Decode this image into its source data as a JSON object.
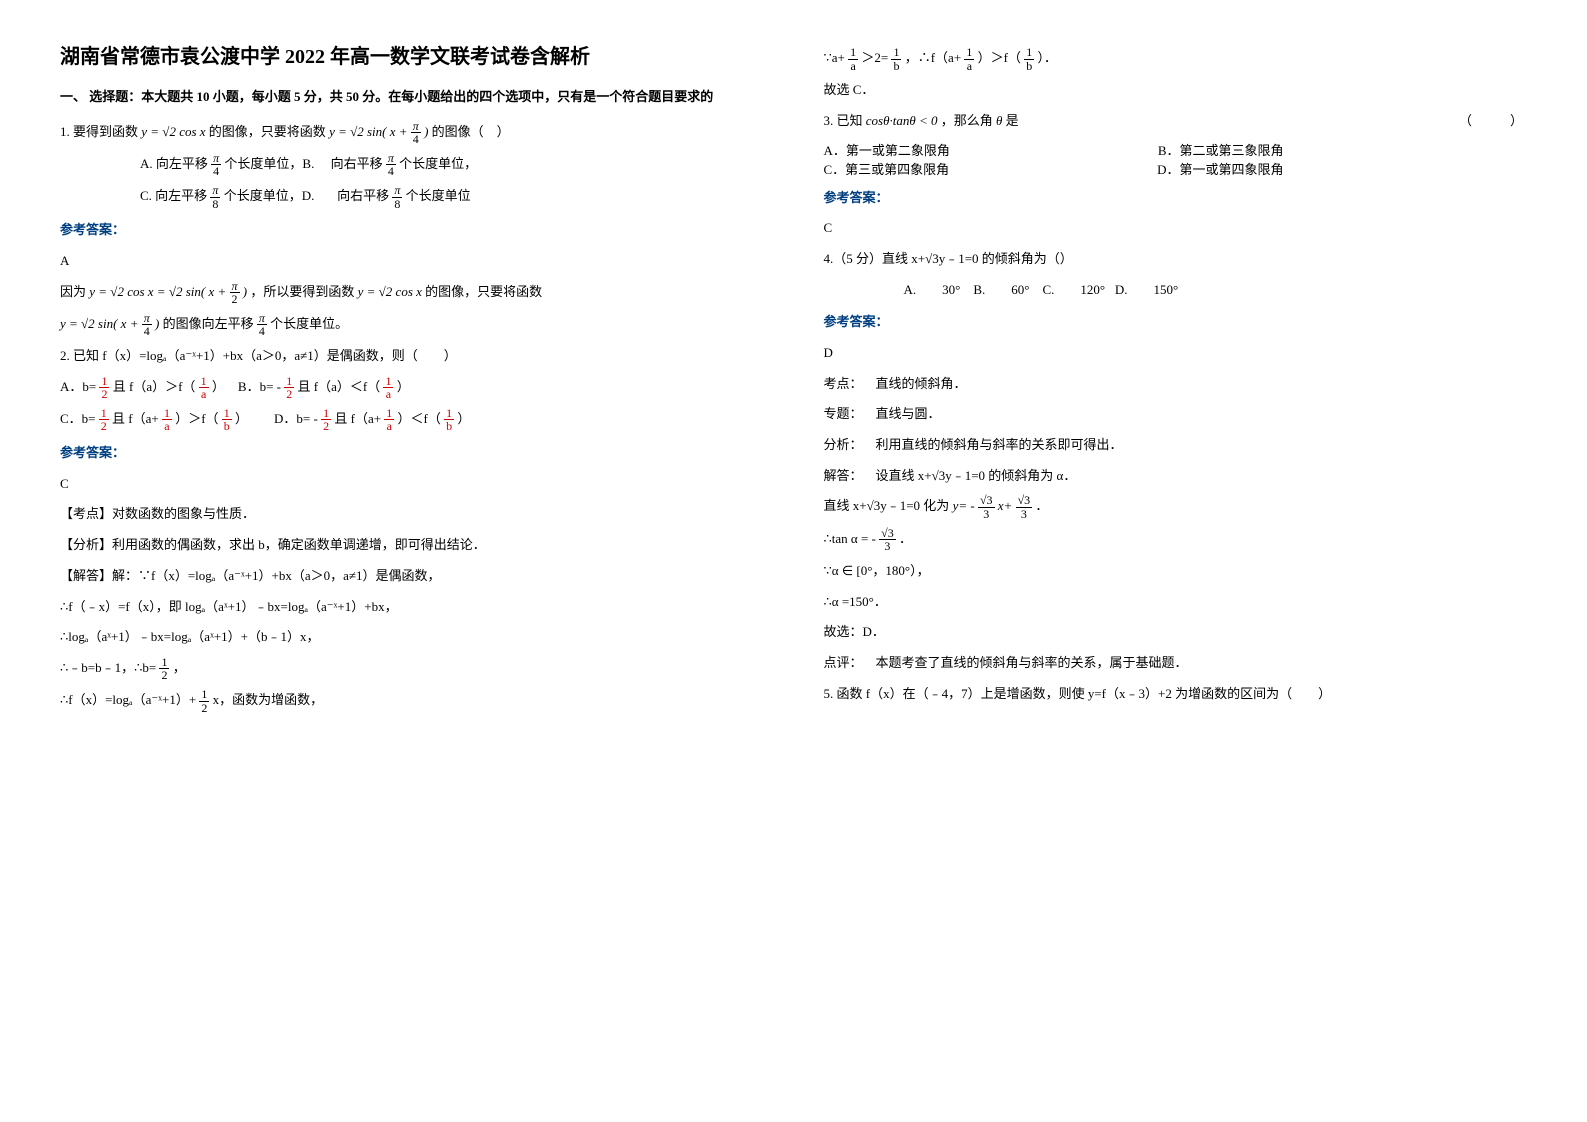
{
  "title": "湖南省常德市袁公渡中学 2022 年高一数学文联考试卷含解析",
  "section1_head": "一、 选择题：本大题共 10 小题，每小题 5 分，共 50 分。在每小题给出的四个选项中，只有是一个符合题目要求的",
  "answer_label": "参考答案：",
  "q1": {
    "stem_a": "1. 要得到函数",
    "func1": "y = √2 cos x",
    "stem_b": "的图像，只要将函数",
    "func2_pre": "y = √2 sin( x +",
    "func2_post": ")",
    "stem_c": "的图像（ ）",
    "A_pre": "A. 向左平移",
    "A_post": "个长度单位，B.",
    "B_pre": "向右平移",
    "B_post": "个长度单位，",
    "C_pre": "C. 向左平移",
    "C_post": "个长度单位，D.",
    "D_pre": "向右平移",
    "D_post": "个长度单位",
    "pi": "π",
    "four": "4",
    "eight": "8",
    "answer": "A",
    "expl_a": "因为",
    "expl_func": "y = √2 cos x = √2 sin( x +",
    "expl_half": ")",
    "expl_b": "，所以要得到函数",
    "expl_c": "的图像，只要将函数",
    "expl_d": "的图像向左平移",
    "expl_e": "个长度单位。",
    "two": "2"
  },
  "q2": {
    "stem": "2. 已知 f（x）=logₐ（a⁻ˣ+1）+bx（a＞0，a≠1）是偶函数，则（  ）",
    "A_a": "A．b=",
    "A_b": "且 f（a）＞f（",
    "A_c": "） B．b= -",
    "A_d": "且 f（a）＜f（",
    "A_e": "）",
    "C_a": "C．b=",
    "C_b": "且 f（a+",
    "C_c": "）＞f（",
    "C_d": "）  D．b= -",
    "C_e": "且 f（a+",
    "C_f": "）＜f（",
    "C_g": "）",
    "one": "1",
    "two": "2",
    "a": "a",
    "b": "b",
    "answer": "C",
    "e1": "【考点】对数函数的图象与性质．",
    "e2": "【分析】利用函数的偶函数，求出 b，确定函数单调递增，即可得出结论．",
    "e3": "【解答】解：∵f（x）=logₐ（a⁻ˣ+1）+bx（a＞0，a≠1）是偶函数，",
    "e4": "∴f（﹣x）=f（x），即 logₐ（aˣ+1）﹣bx=logₐ（a⁻ˣ+1）+bx，",
    "e5": "∴logₐ（aˣ+1）﹣bx=logₐ（aˣ+1）+（b﹣1）x，",
    "e6a": "∴﹣b=b﹣1，∴b=",
    "e6b": "，",
    "e7a": "∴f（x）=logₐ（a⁻ˣ+1）+",
    "e7b": "x，函数为增函数，",
    "e8a": "∵a+",
    "e8b": "＞2=",
    "e8c": "，∴f（a+",
    "e8d": "）＞f（",
    "e8e": "）．",
    "e9": "故选 C．"
  },
  "q3": {
    "stem_a": "3. 已知",
    "expr": "cosθ·tanθ < 0",
    "stem_b": "，那么角",
    "theta": "θ",
    "stem_c": "是",
    "blank": "（  ）",
    "A": "A．第一或第二象限角",
    "B": "B．第二或第三象限角",
    "C": "C．第三或第四象限角",
    "D": "D．第一或第四象限角",
    "answer": "C"
  },
  "q4": {
    "stem": "4.（5 分）直线 x+√3y﹣1=0 的倾斜角为（）",
    "A": "A.  30°",
    "B": "B.  60°",
    "C": "C.  120°",
    "D": "D.  150°",
    "answer": "D",
    "e1": "考点： 直线的倾斜角．",
    "e2": "专题： 直线与圆．",
    "e3": "分析： 利用直线的倾斜角与斜率的关系即可得出．",
    "e4": "解答： 设直线 x+√3y﹣1=0 的倾斜角为 α．",
    "e5a": "直线 x+√3y﹣1=0 化为",
    "e5eq_a": "y= -",
    "e5eq_b": "x+",
    "e5b": "．",
    "e6a": "∴tan α = -",
    "e6b": "．",
    "e7": "∵α ∈ [0°，180°），",
    "e8": "∴α =150°．",
    "e9": "故选：D．",
    "e10": "点评： 本题考查了直线的倾斜角与斜率的关系，属于基础题．",
    "s3": "√3",
    "three": "3"
  },
  "q5": {
    "stem": "5. 函数 f（x）在（﹣4，7）上是增函数，则使 y=f（x﹣3）+2 为增函数的区间为（  ）"
  }
}
